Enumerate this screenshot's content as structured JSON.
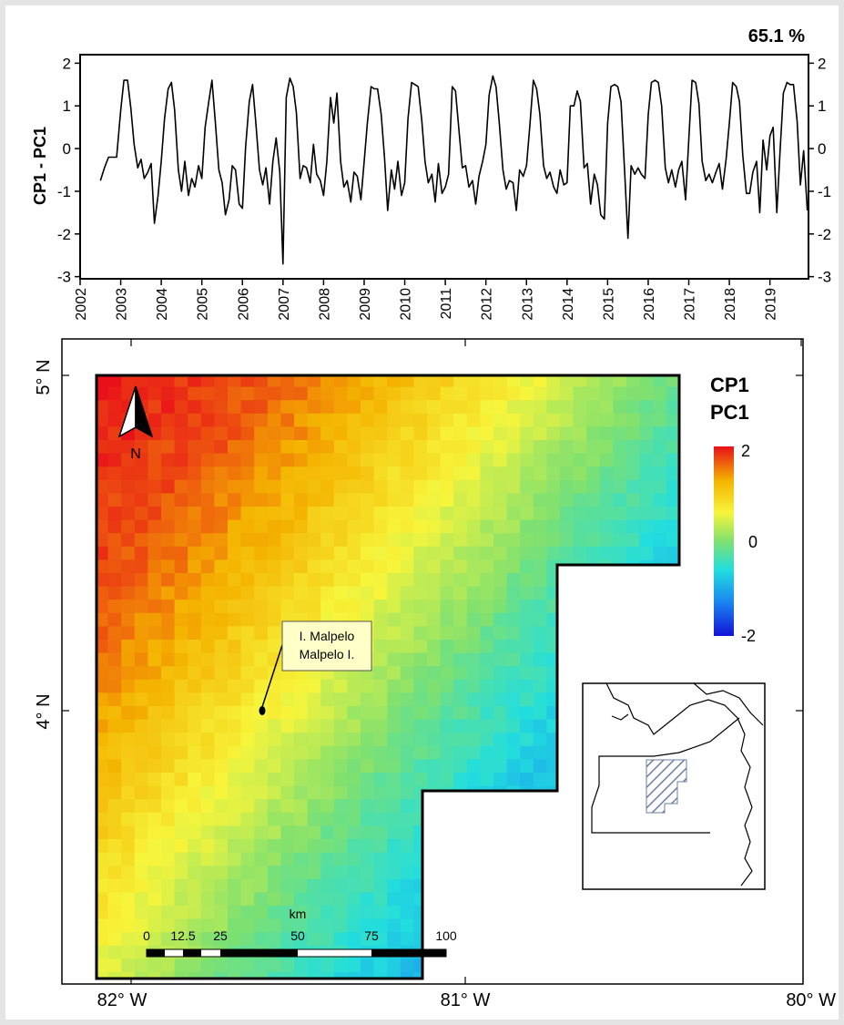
{
  "chart_data": [
    {
      "type": "line",
      "ylabel": "CP1 - PC1",
      "explained_variance": "65.1 %",
      "ylim": [
        -3,
        2
      ],
      "yticks": [
        "2",
        "1",
        "0",
        "-1",
        "-2",
        "-3"
      ],
      "xticks": [
        "2002",
        "2003",
        "2004",
        "2005",
        "2006",
        "2007",
        "2008",
        "2009",
        "2010",
        "2011",
        "2012",
        "2013",
        "2014",
        "2015",
        "2016",
        "2017",
        "2018",
        "2019"
      ],
      "series": [
        {
          "values": [
            [
              2002.5,
              -0.75
            ],
            [
              2002.6,
              -0.45
            ],
            [
              2002.7,
              -0.2
            ],
            [
              2002.8,
              -0.2
            ],
            [
              2002.9,
              -0.2
            ],
            [
              2003.0,
              0.9
            ],
            [
              2003.08,
              1.6
            ],
            [
              2003.17,
              1.6
            ],
            [
              2003.25,
              0.95
            ],
            [
              2003.33,
              0.1
            ],
            [
              2003.42,
              -0.45
            ],
            [
              2003.5,
              -0.25
            ],
            [
              2003.58,
              -0.7
            ],
            [
              2003.67,
              -0.55
            ],
            [
              2003.75,
              -0.35
            ],
            [
              2003.83,
              -1.75
            ],
            [
              2003.92,
              -1.1
            ],
            [
              2004.0,
              -0.3
            ],
            [
              2004.08,
              0.7
            ],
            [
              2004.17,
              1.4
            ],
            [
              2004.25,
              1.55
            ],
            [
              2004.33,
              0.9
            ],
            [
              2004.42,
              -0.5
            ],
            [
              2004.5,
              -1.0
            ],
            [
              2004.58,
              -0.3
            ],
            [
              2004.67,
              -1.1
            ],
            [
              2004.75,
              -0.7
            ],
            [
              2004.83,
              -0.9
            ],
            [
              2004.92,
              -0.4
            ],
            [
              2005.0,
              -0.7
            ],
            [
              2005.08,
              0.5
            ],
            [
              2005.17,
              1.1
            ],
            [
              2005.25,
              1.6
            ],
            [
              2005.33,
              0.65
            ],
            [
              2005.42,
              -0.5
            ],
            [
              2005.5,
              -0.8
            ],
            [
              2005.58,
              -1.55
            ],
            [
              2005.67,
              -1.2
            ],
            [
              2005.75,
              -0.4
            ],
            [
              2005.83,
              -0.5
            ],
            [
              2005.92,
              -1.3
            ],
            [
              2006.0,
              -1.4
            ],
            [
              2006.08,
              0.05
            ],
            [
              2006.17,
              1.1
            ],
            [
              2006.25,
              1.5
            ],
            [
              2006.33,
              0.6
            ],
            [
              2006.42,
              -0.5
            ],
            [
              2006.5,
              -0.85
            ],
            [
              2006.58,
              -0.45
            ],
            [
              2006.67,
              -1.3
            ],
            [
              2006.75,
              -0.3
            ],
            [
              2006.83,
              0.25
            ],
            [
              2006.92,
              -0.55
            ],
            [
              2007.0,
              -2.7
            ],
            [
              2007.08,
              1.2
            ],
            [
              2007.17,
              1.65
            ],
            [
              2007.25,
              1.45
            ],
            [
              2007.33,
              0.85
            ],
            [
              2007.42,
              -0.7
            ],
            [
              2007.5,
              -0.4
            ],
            [
              2007.58,
              -0.45
            ],
            [
              2007.67,
              -0.8
            ],
            [
              2007.75,
              0.1
            ],
            [
              2007.83,
              -0.6
            ],
            [
              2007.92,
              -0.75
            ],
            [
              2008.0,
              -1.1
            ],
            [
              2008.08,
              -0.3
            ],
            [
              2008.17,
              1.2
            ],
            [
              2008.25,
              0.6
            ],
            [
              2008.33,
              1.3
            ],
            [
              2008.42,
              -0.3
            ],
            [
              2008.5,
              -0.9
            ],
            [
              2008.58,
              -0.75
            ],
            [
              2008.67,
              -1.25
            ],
            [
              2008.75,
              -0.55
            ],
            [
              2008.83,
              -0.65
            ],
            [
              2008.92,
              -1.2
            ],
            [
              2009.0,
              -0.3
            ],
            [
              2009.08,
              0.6
            ],
            [
              2009.17,
              1.45
            ],
            [
              2009.25,
              1.4
            ],
            [
              2009.33,
              1.4
            ],
            [
              2009.42,
              0.8
            ],
            [
              2009.5,
              -0.2
            ],
            [
              2009.58,
              -1.45
            ],
            [
              2009.67,
              -0.5
            ],
            [
              2009.75,
              -0.95
            ],
            [
              2009.83,
              -0.3
            ],
            [
              2009.92,
              -1.1
            ],
            [
              2010.0,
              -0.8
            ],
            [
              2010.08,
              0.7
            ],
            [
              2010.17,
              1.55
            ],
            [
              2010.25,
              1.5
            ],
            [
              2010.33,
              1.45
            ],
            [
              2010.42,
              0.65
            ],
            [
              2010.5,
              -0.3
            ],
            [
              2010.58,
              -0.8
            ],
            [
              2010.67,
              -0.6
            ],
            [
              2010.75,
              -1.25
            ],
            [
              2010.83,
              -0.35
            ],
            [
              2010.92,
              -1.05
            ],
            [
              2011.0,
              -0.9
            ],
            [
              2011.08,
              -0.6
            ],
            [
              2011.17,
              1.45
            ],
            [
              2011.25,
              1.35
            ],
            [
              2011.33,
              0.5
            ],
            [
              2011.42,
              -0.45
            ],
            [
              2011.5,
              -0.4
            ],
            [
              2011.58,
              -0.9
            ],
            [
              2011.67,
              -0.75
            ],
            [
              2011.75,
              -1.3
            ],
            [
              2011.83,
              -0.65
            ],
            [
              2011.92,
              -0.3
            ],
            [
              2012.0,
              0.1
            ],
            [
              2012.08,
              1.25
            ],
            [
              2012.17,
              1.7
            ],
            [
              2012.25,
              1.45
            ],
            [
              2012.33,
              0.6
            ],
            [
              2012.42,
              -0.5
            ],
            [
              2012.5,
              -0.95
            ],
            [
              2012.58,
              -0.75
            ],
            [
              2012.67,
              -0.8
            ],
            [
              2012.75,
              -1.45
            ],
            [
              2012.83,
              -0.5
            ],
            [
              2012.92,
              -0.65
            ],
            [
              2013.0,
              -0.4
            ],
            [
              2013.08,
              0.5
            ],
            [
              2013.17,
              1.6
            ],
            [
              2013.25,
              1.4
            ],
            [
              2013.33,
              0.8
            ],
            [
              2013.42,
              -0.4
            ],
            [
              2013.5,
              -0.7
            ],
            [
              2013.58,
              -0.55
            ],
            [
              2013.67,
              -0.9
            ],
            [
              2013.75,
              -1.05
            ],
            [
              2013.83,
              -0.5
            ],
            [
              2013.92,
              -0.85
            ],
            [
              2014.0,
              -0.8
            ],
            [
              2014.08,
              1.0
            ],
            [
              2014.17,
              1.0
            ],
            [
              2014.25,
              1.35
            ],
            [
              2014.33,
              1.1
            ],
            [
              2014.42,
              -0.45
            ],
            [
              2014.5,
              -0.35
            ],
            [
              2014.58,
              -1.3
            ],
            [
              2014.67,
              -0.6
            ],
            [
              2014.75,
              -0.85
            ],
            [
              2014.83,
              -1.55
            ],
            [
              2014.92,
              -1.65
            ],
            [
              2015.0,
              0.6
            ],
            [
              2015.08,
              1.45
            ],
            [
              2015.17,
              1.5
            ],
            [
              2015.25,
              1.45
            ],
            [
              2015.33,
              1.1
            ],
            [
              2015.42,
              -0.55
            ],
            [
              2015.5,
              -2.1
            ],
            [
              2015.58,
              -0.4
            ],
            [
              2015.67,
              -0.6
            ],
            [
              2015.75,
              -0.45
            ],
            [
              2015.83,
              -0.6
            ],
            [
              2015.92,
              -0.7
            ],
            [
              2016.0,
              0.8
            ],
            [
              2016.08,
              1.55
            ],
            [
              2016.17,
              1.6
            ],
            [
              2016.25,
              1.55
            ],
            [
              2016.33,
              1.0
            ],
            [
              2016.42,
              -0.45
            ],
            [
              2016.5,
              -0.8
            ],
            [
              2016.58,
              -0.5
            ],
            [
              2016.67,
              -0.9
            ],
            [
              2016.75,
              -0.5
            ],
            [
              2016.83,
              -0.3
            ],
            [
              2016.92,
              -1.2
            ],
            [
              2017.0,
              0.2
            ],
            [
              2017.08,
              1.6
            ],
            [
              2017.17,
              1.55
            ],
            [
              2017.25,
              1.05
            ],
            [
              2017.33,
              -0.3
            ],
            [
              2017.42,
              -0.75
            ],
            [
              2017.5,
              -0.6
            ],
            [
              2017.58,
              -0.8
            ],
            [
              2017.67,
              -0.55
            ],
            [
              2017.75,
              -0.35
            ],
            [
              2017.83,
              -0.95
            ],
            [
              2017.92,
              -0.25
            ],
            [
              2018.0,
              0.6
            ],
            [
              2018.08,
              1.55
            ],
            [
              2018.17,
              1.45
            ],
            [
              2018.25,
              1.1
            ],
            [
              2018.33,
              -0.15
            ],
            [
              2018.42,
              -1.05
            ],
            [
              2018.5,
              -1.05
            ],
            [
              2018.58,
              -0.55
            ],
            [
              2018.67,
              -0.3
            ],
            [
              2018.75,
              -1.5
            ],
            [
              2018.83,
              0.2
            ],
            [
              2018.92,
              -0.5
            ],
            [
              2019.0,
              0.3
            ],
            [
              2019.08,
              0.5
            ],
            [
              2019.17,
              -1.5
            ],
            [
              2019.25,
              -0.05
            ],
            [
              2019.33,
              1.3
            ],
            [
              2019.42,
              1.55
            ],
            [
              2019.5,
              1.5
            ],
            [
              2019.58,
              1.5
            ],
            [
              2019.67,
              0.65
            ],
            [
              2019.75,
              -0.85
            ],
            [
              2019.83,
              -0.05
            ],
            [
              2019.92,
              -1.45
            ]
          ]
        }
      ]
    },
    {
      "type": "heatmap",
      "legend_title_line1": "CP1",
      "legend_title_line2": "PC1",
      "colorbar_ticks": [
        "2",
        "0",
        "-2"
      ],
      "colorbar_range": [
        -2,
        2
      ],
      "colorbar_colors": [
        "#e8101a",
        "#f4b300",
        "#f7f53b",
        "#7fe070",
        "#22dede",
        "#1a86f0",
        "#1212d8"
      ],
      "lat_labels": [
        "5° N",
        "4° N"
      ],
      "lon_labels": [
        "82° W",
        "81° W",
        "80° W"
      ],
      "lat_range": [
        3.5,
        5.0
      ],
      "lon_range": [
        -82.1,
        -80.35
      ],
      "gradient_stops": [
        {
          "offset": 0.0,
          "value": 2.0
        },
        {
          "offset": 0.18,
          "value": 1.7
        },
        {
          "offset": 0.32,
          "value": 1.2
        },
        {
          "offset": 0.48,
          "value": 0.5
        },
        {
          "offset": 0.62,
          "value": -0.2
        },
        {
          "offset": 0.76,
          "value": -0.8
        },
        {
          "offset": 1.0,
          "value": -1.5
        }
      ],
      "island_label_line1": "I. Malpelo",
      "island_label_line2": "Malpelo I.",
      "north_arrow_label": "N",
      "scalebar": {
        "unit": "km",
        "labels": [
          "0",
          "12.5",
          "25",
          "50",
          "75",
          "100"
        ]
      }
    }
  ]
}
